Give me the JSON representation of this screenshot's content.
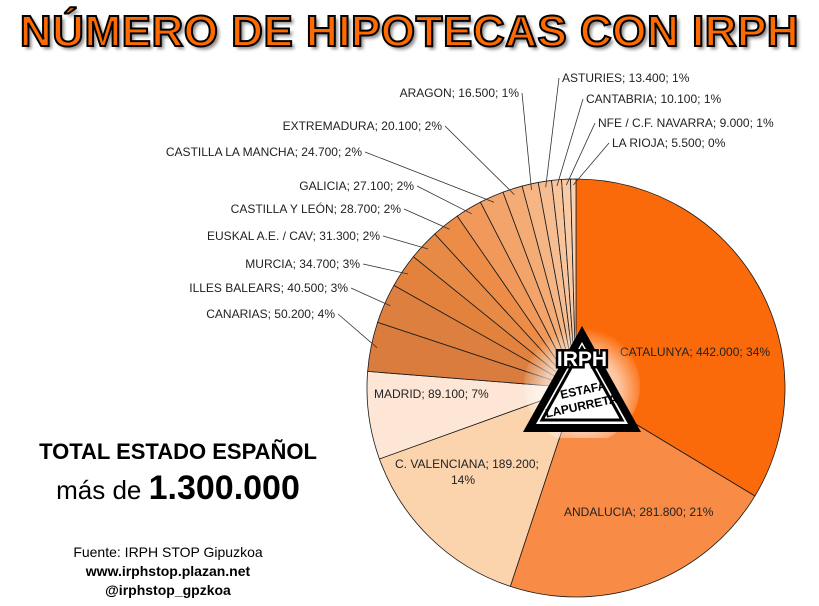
{
  "title": "NÚMERO DE HIPOTECAS CON IRPH",
  "chart_data": {
    "type": "pie",
    "slices": [
      {
        "label": "CATALUNYA; 442.000; 34%",
        "value": 442000,
        "color": "#fb6a0a"
      },
      {
        "label": "ANDALUCIA; 281.800; 21%",
        "value": 281800,
        "color": "#f88b45"
      },
      {
        "label": "C. VALENCIANA; 189.200; 14%",
        "value": 189200,
        "color": "#fbd3ad"
      },
      {
        "label": "MADRID; 89.100; 7%",
        "value": 89100,
        "color": "#fde6d5"
      },
      {
        "label": "CANARIAS; 50.200; 4%",
        "value": 50200,
        "color": "#d97c3e"
      },
      {
        "label": "ILLES BALEARS; 40.500; 3%",
        "value": 40500,
        "color": "#dd803f"
      },
      {
        "label": "MURCIA; 34.700; 3%",
        "value": 34700,
        "color": "#e2823c"
      },
      {
        "label": "EUSKAL A.E. / CAV; 31.300; 2%",
        "value": 31300,
        "color": "#e78a45"
      },
      {
        "label": "CASTILLA Y LEÓN; 28.700; 2%",
        "value": 28700,
        "color": "#ec8c47"
      },
      {
        "label": "GALICIA; 27.100; 2%",
        "value": 27100,
        "color": "#f0995a"
      },
      {
        "label": "CASTILLA LA MANCHA; 24.700; 2%",
        "value": 24700,
        "color": "#f2a46a"
      },
      {
        "label": "EXTREMADURA; 20.100; 2%",
        "value": 20100,
        "color": "#f4ac77"
      },
      {
        "label": "ARAGON; 16.500; 1%",
        "value": 16500,
        "color": "#f5b584"
      },
      {
        "label": "ASTURIES; 13.400; 1%",
        "value": 13400,
        "color": "#f6bd92"
      },
      {
        "label": "CANTABRIA; 10.100; 1%",
        "value": 10100,
        "color": "#f7c49c"
      },
      {
        "label": "NFE / C.F. NAVARRA; 9.000; 1%",
        "value": 9000,
        "color": "#f8caa6"
      },
      {
        "label": "LA RIOJA; 5.500; 0%",
        "value": 5500,
        "color": "#f9d2b3"
      }
    ]
  },
  "badge": {
    "line1": "IRPH",
    "line2": "ESTAFA",
    "line3": "LAPURRETA"
  },
  "total": {
    "label": "TOTAL ESTADO ESPAÑOL",
    "prefix": "más de",
    "value": "1.300.000"
  },
  "source": {
    "text": "Fuente: IRPH STOP Gipuzkoa",
    "url": "www.irphstop.plazan.net",
    "twitter": "@irphstop_gpzkoa"
  }
}
